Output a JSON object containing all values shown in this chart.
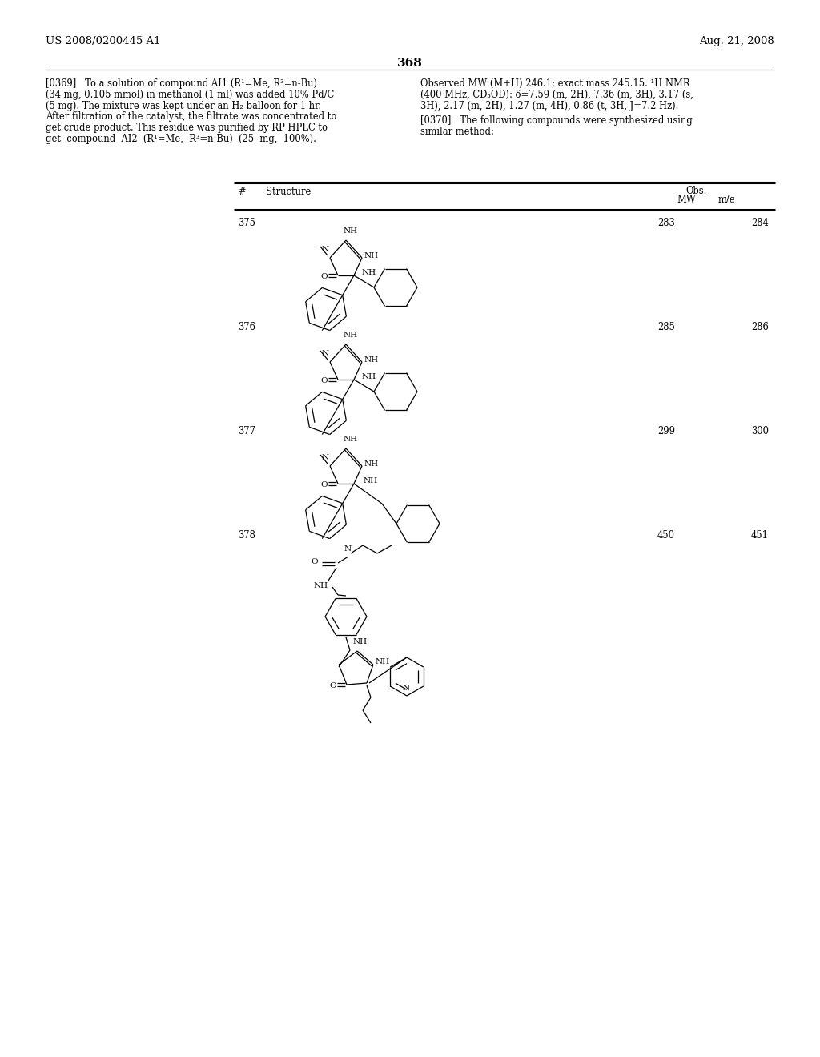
{
  "background_color": "#ffffff",
  "header_left": "US 2008/0200445 A1",
  "header_right": "Aug. 21, 2008",
  "page_number": "368",
  "para_0369_lines": [
    "[0369]   To a solution of compound AI1 (R¹=Me, R³=n-Bu)",
    "(34 mg, 0.105 mmol) in methanol (1 ml) was added 10% Pd/C",
    "(5 mg). The mixture was kept under an H₂ balloon for 1 hr.",
    "After filtration of the catalyst, the filtrate was concentrated to",
    "get crude product. This residue was purified by RP HPLC to",
    "get  compound  AI2  (R¹=Me,  R³=n-Bu)  (25  mg,  100%)."
  ],
  "para_right_obs_lines": [
    "Observed MW (M+H) 246.1; exact mass 245.15. ¹H NMR",
    "(400 MHz, CD₃OD): δ=7.59 (m, 2H), 7.36 (m, 3H), 3.17 (s,",
    "3H), 2.17 (m, 2H), 1.27 (m, 4H), 0.86 (t, 3H, J=7.2 Hz)."
  ],
  "para_0370_lines": [
    "[0370]   The following compounds were synthesized using",
    "similar method:"
  ],
  "compounds": [
    {
      "number": "375",
      "mw": "283",
      "mie": "284"
    },
    {
      "number": "376",
      "mw": "285",
      "mie": "286"
    },
    {
      "number": "377",
      "mw": "299",
      "mie": "300"
    },
    {
      "number": "378",
      "mw": "450",
      "mie": "451"
    }
  ]
}
